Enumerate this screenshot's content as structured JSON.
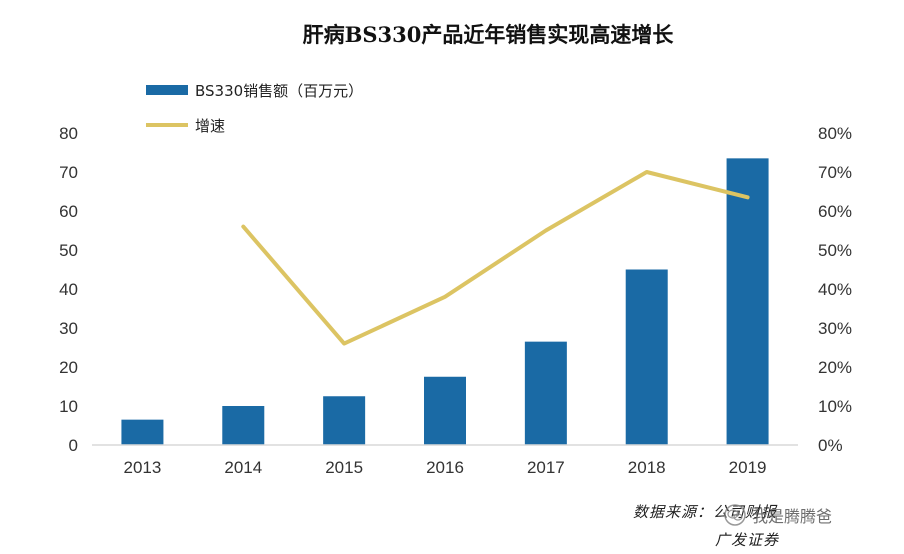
{
  "chart_data": {
    "type": "bar",
    "title": "肝病BS330产品近年销售实现高速增长",
    "categories": [
      "2013",
      "2014",
      "2015",
      "2016",
      "2017",
      "2018",
      "2019"
    ],
    "series": [
      {
        "name": "BS330销售额（百万元）",
        "type": "bar",
        "axis": "left",
        "color": "#1a6aa5",
        "values": [
          6.5,
          10,
          12.5,
          17.5,
          26.5,
          45,
          73.5
        ]
      },
      {
        "name": "增速",
        "type": "line",
        "axis": "right",
        "color": "#dcc463",
        "values": [
          null,
          0.56,
          0.26,
          0.38,
          0.55,
          0.7,
          0.635
        ]
      }
    ],
    "y_left": {
      "ylim": [
        0,
        80
      ],
      "ticks": [
        "0",
        "10",
        "20",
        "30",
        "40",
        "50",
        "60",
        "70",
        "80"
      ]
    },
    "y_right": {
      "ylim": [
        0,
        0.8
      ],
      "ticks": [
        "0%",
        "10%",
        "20%",
        "30%",
        "40%",
        "50%",
        "60%",
        "70%",
        "80%"
      ]
    },
    "legend_position": "top-left",
    "grid": false
  },
  "source_text": {
    "line1": "数据来源：公司财报",
    "line2": "广发证券"
  },
  "watermark": {
    "text": "我是腾腾爸",
    "icon": "wechat-icon"
  }
}
